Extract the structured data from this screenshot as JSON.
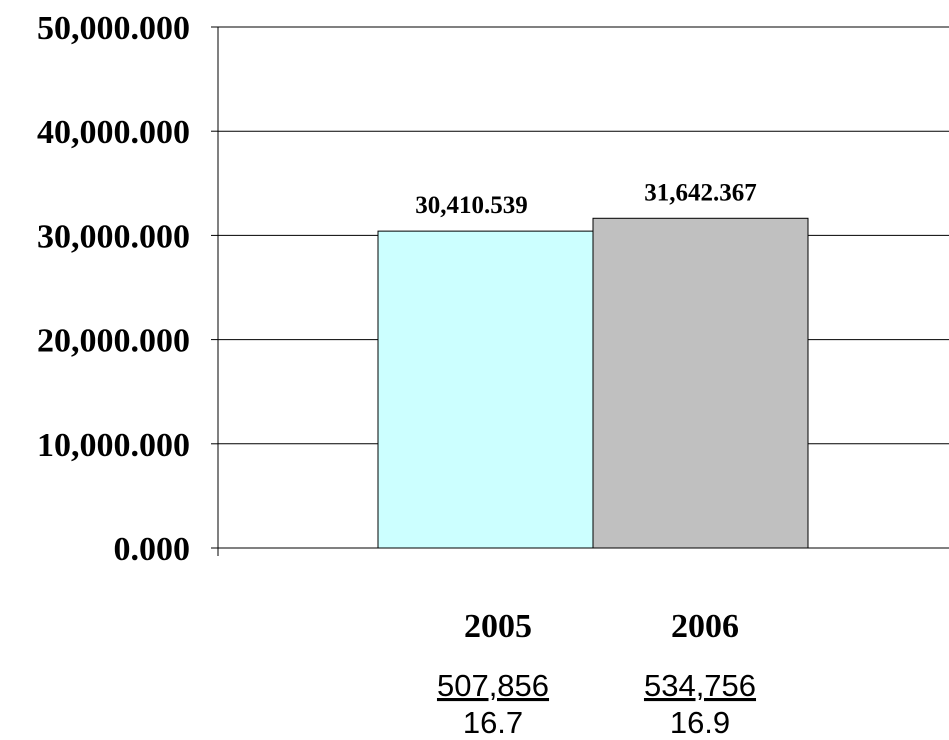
{
  "chart_data": {
    "type": "bar",
    "categories": [
      "2005",
      "2006"
    ],
    "values": [
      30410.539,
      31642.367
    ],
    "data_labels": [
      "30,410.539",
      "31,642.367"
    ],
    "bar_colors": [
      "#ccffff",
      "#c0c0c0"
    ],
    "ylim": [
      0,
      50000
    ],
    "yticks": [
      0,
      10000,
      20000,
      30000,
      40000,
      50000
    ],
    "ytick_labels": [
      "0.000",
      "10,000.000",
      "20,000.000",
      "30,000.000",
      "40,000.000",
      "50,000.000"
    ],
    "grid": true,
    "sub_values": [
      "507,856",
      "534,756"
    ],
    "sub_values_2": [
      "16.7",
      "16.9"
    ]
  }
}
